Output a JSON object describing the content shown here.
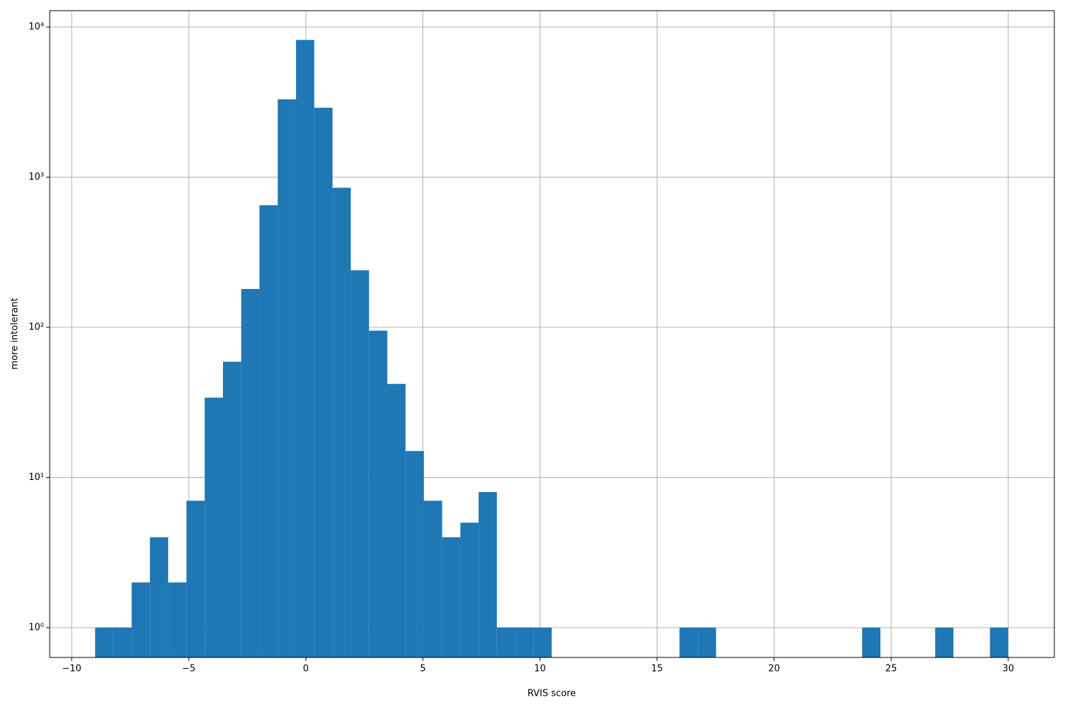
{
  "chart_data": {
    "type": "histogram",
    "xlabel": "RVIS score",
    "ylabel": "more intolerant",
    "bins": [
      -9,
      -8.22,
      -7.44,
      -6.66,
      -5.88,
      -5.1,
      -4.32,
      -3.54,
      -2.76,
      -1.98,
      -1.2,
      -0.42,
      0.36,
      1.14,
      1.92,
      2.7,
      3.48,
      4.26,
      5.04,
      5.82,
      6.6,
      7.38,
      8.16,
      8.94,
      9.72,
      10.5,
      11.28,
      12.06,
      12.84,
      13.62,
      14.4,
      15.18,
      15.96,
      16.74,
      17.52,
      18.3,
      19.08,
      19.86,
      20.64,
      21.42,
      22.2,
      22.98,
      23.76,
      24.54,
      25.32,
      26.1,
      26.88,
      27.66,
      28.44,
      29.22,
      30
    ],
    "values": [
      1,
      1,
      2,
      4,
      2,
      7,
      34,
      59,
      180,
      650,
      3300,
      8200,
      2900,
      850,
      240,
      95,
      42,
      15,
      7,
      4,
      5,
      8,
      1,
      1,
      1,
      0,
      0,
      0,
      0,
      0,
      0,
      0,
      1,
      1,
      0,
      0,
      0,
      0,
      0,
      0,
      0,
      0,
      1,
      0,
      0,
      0,
      1,
      0,
      0,
      1
    ],
    "color": "#1f77b4",
    "xlim": [
      -10.94,
      31.97
    ],
    "xticks": [
      {
        "value": -10,
        "label": "−10"
      },
      {
        "value": -5,
        "label": "−5"
      },
      0,
      5,
      10,
      15,
      20,
      25,
      30
    ],
    "ylim": [
      0.633,
      12850
    ],
    "yscale": "log",
    "yticks": [
      {
        "value": 1,
        "label": "10⁰"
      },
      {
        "value": 10,
        "label": "10¹"
      },
      {
        "value": 100,
        "label": "10²"
      },
      {
        "value": 1000,
        "label": "10³"
      },
      {
        "value": 10000,
        "label": "10⁴"
      }
    ],
    "grid": true
  }
}
